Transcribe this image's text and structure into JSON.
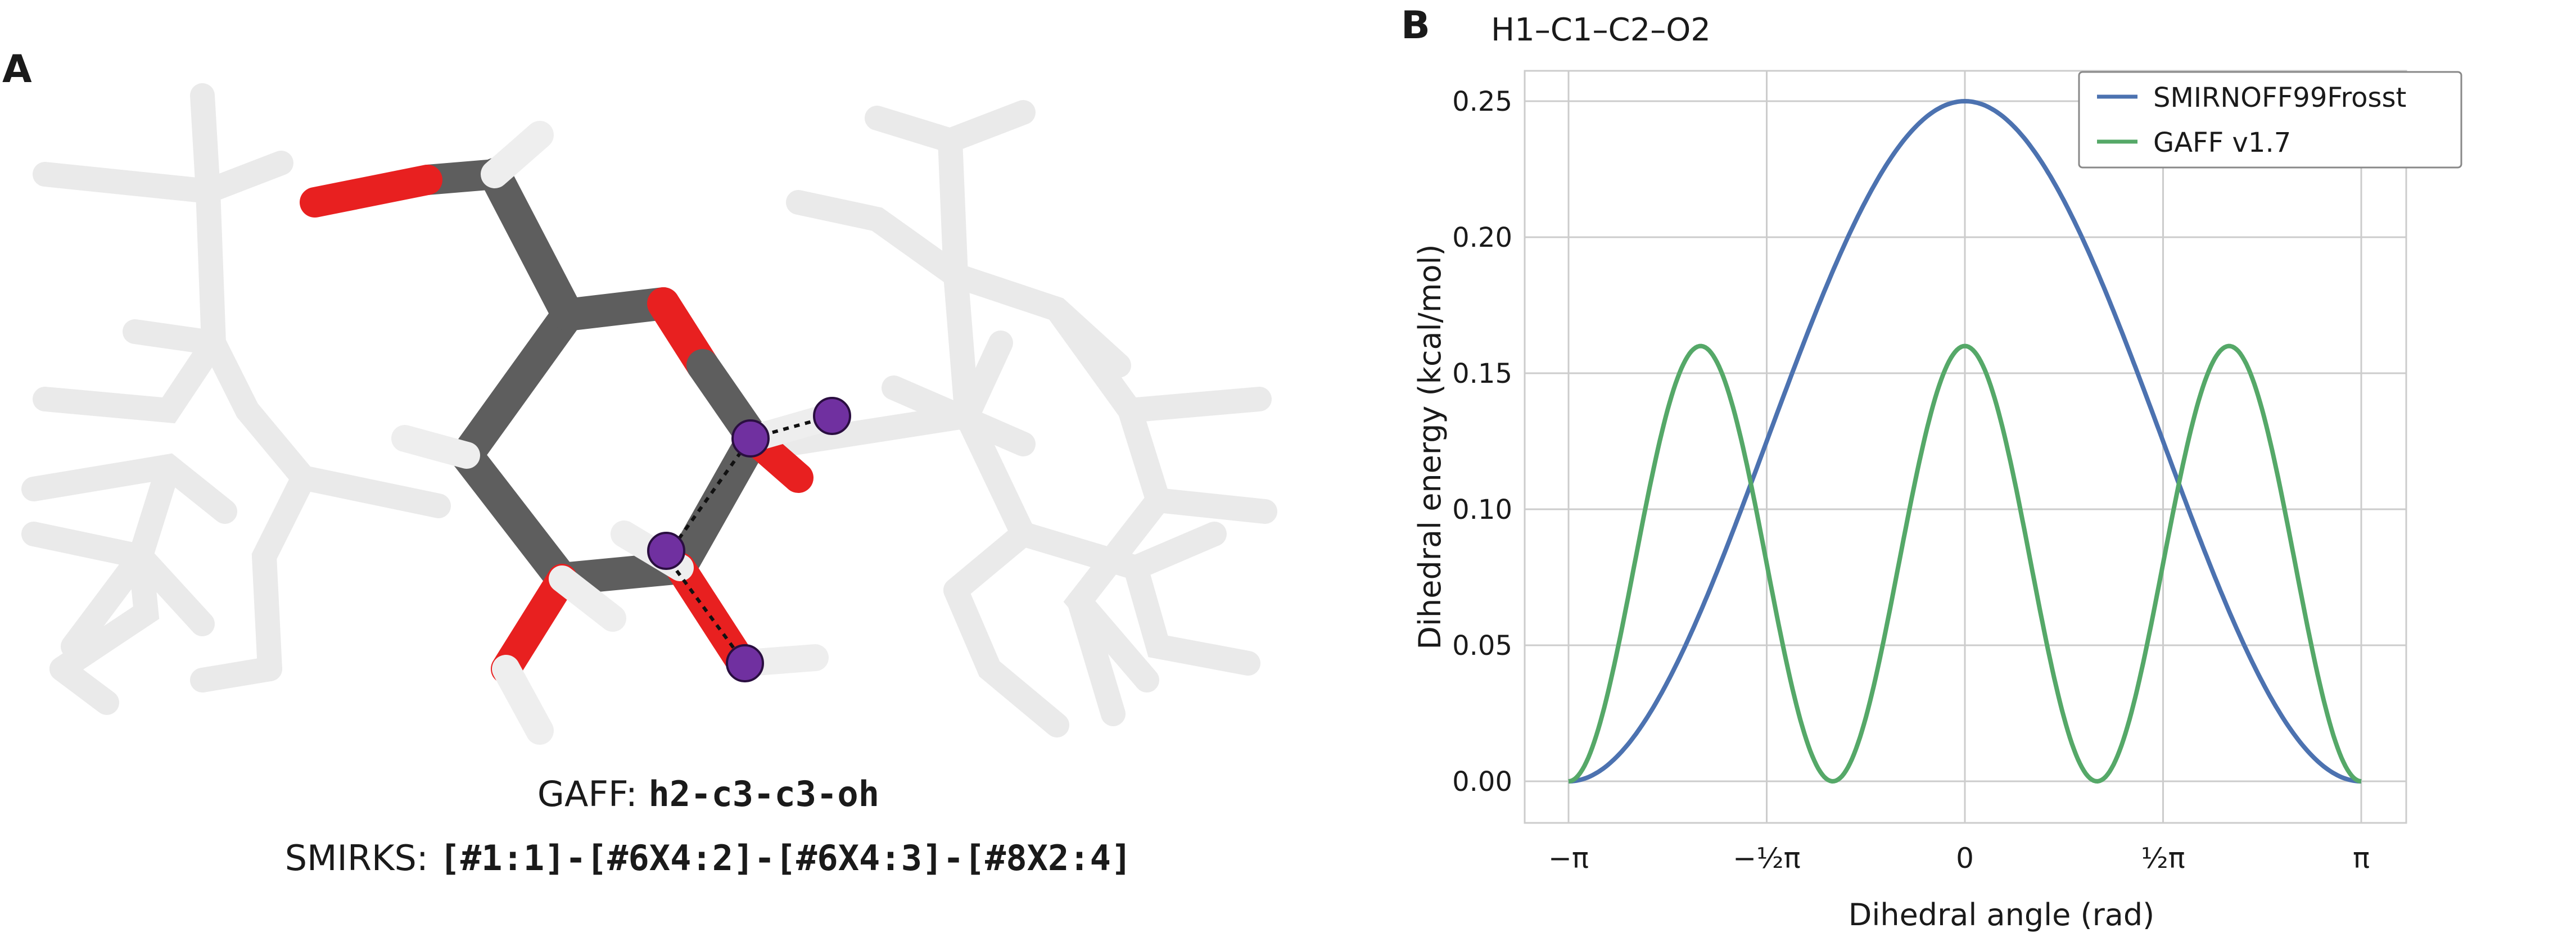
{
  "panel_a": {
    "letter": "A",
    "gaff_prefix": "GAFF: ",
    "gaff_types": "h2-c3-c3-oh",
    "smirks_prefix": "SMIRKS: ",
    "smirks_pattern": "[#1:1]-[#6X4:2]-[#6X4:3]-[#8X2:4]"
  },
  "panel_b": {
    "letter": "B"
  },
  "colors": {
    "smirnoff": "#4c72b0",
    "gaff": "#55a868",
    "grid": "#cccccc",
    "oxygen": "#ee2222",
    "carbon": "#606060",
    "hydrogen": "#f2f2f2",
    "highlight_atom": "#7030a0"
  },
  "chart_data": {
    "type": "line",
    "title": "H1–C1–C2–O2",
    "xlabel": "Dihedral angle (rad)",
    "ylabel": "Dihedral energy (kcal/mol)",
    "xlim": [
      -3.1416,
      3.1416
    ],
    "ylim": [
      0,
      0.25
    ],
    "xticks": [
      -3.1416,
      -1.5708,
      0,
      1.5708,
      3.1416
    ],
    "xtick_labels": [
      "−π",
      "−½π",
      "0",
      "½π",
      "π"
    ],
    "yticks": [
      0.0,
      0.05,
      0.1,
      0.15,
      0.2,
      0.25
    ],
    "ytick_labels": [
      "0.00",
      "0.05",
      "0.10",
      "0.15",
      "0.20",
      "0.25"
    ],
    "grid": true,
    "legend_position": "top-right",
    "series": [
      {
        "name": "SMIRNOFF99Frosst",
        "color": "#4c72b0",
        "k": 0.25,
        "periodicity": 1,
        "phase": 0,
        "points": [
          [
            -3.1416,
            0.0
          ],
          [
            -1.5708,
            0.125
          ],
          [
            0,
            0.25
          ],
          [
            1.5708,
            0.125
          ],
          [
            3.1416,
            0.0
          ]
        ]
      },
      {
        "name": "GAFF v1.7",
        "color": "#55a868",
        "k": 0.16,
        "periodicity": 3,
        "phase": 0,
        "points": [
          [
            -3.1416,
            0.0
          ],
          [
            -2.0944,
            0.16
          ],
          [
            -1.0472,
            0.0
          ],
          [
            0,
            0.16
          ],
          [
            1.0472,
            0.0
          ],
          [
            2.0944,
            0.16
          ],
          [
            3.1416,
            0.0
          ]
        ]
      }
    ]
  }
}
